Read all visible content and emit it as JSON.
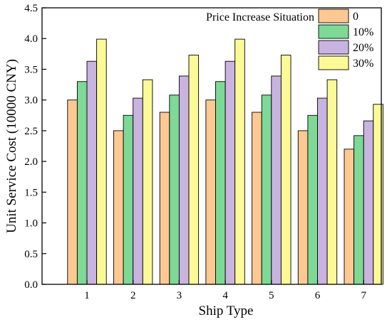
{
  "chart_data": {
    "type": "bar",
    "title": "",
    "xlabel": "Ship Type",
    "ylabel": "Unit Service Cost (10000 CNY)",
    "categories": [
      "1",
      "2",
      "3",
      "4",
      "5",
      "6",
      "7"
    ],
    "ylim": [
      0,
      4.5
    ],
    "yticks": [
      "0.0",
      "0.5",
      "1.0",
      "1.5",
      "2.0",
      "2.5",
      "3.0",
      "3.5",
      "4.0",
      "4.5"
    ],
    "legend_title": "Price Increase Situation",
    "legend_position": "top-right",
    "grid": false,
    "series": [
      {
        "name": "0",
        "color": "#FDC891",
        "values": [
          3.0,
          2.5,
          2.8,
          3.0,
          2.8,
          2.5,
          2.2
        ]
      },
      {
        "name": "10%",
        "color": "#7DD995",
        "values": [
          3.3,
          2.75,
          3.08,
          3.3,
          3.08,
          2.75,
          2.42
        ]
      },
      {
        "name": "20%",
        "color": "#C9B3E0",
        "values": [
          3.63,
          3.03,
          3.39,
          3.63,
          3.39,
          3.03,
          2.66
        ]
      },
      {
        "name": "30%",
        "color": "#FBFA97",
        "values": [
          3.99,
          3.33,
          3.73,
          3.99,
          3.73,
          3.33,
          2.93
        ]
      }
    ]
  }
}
